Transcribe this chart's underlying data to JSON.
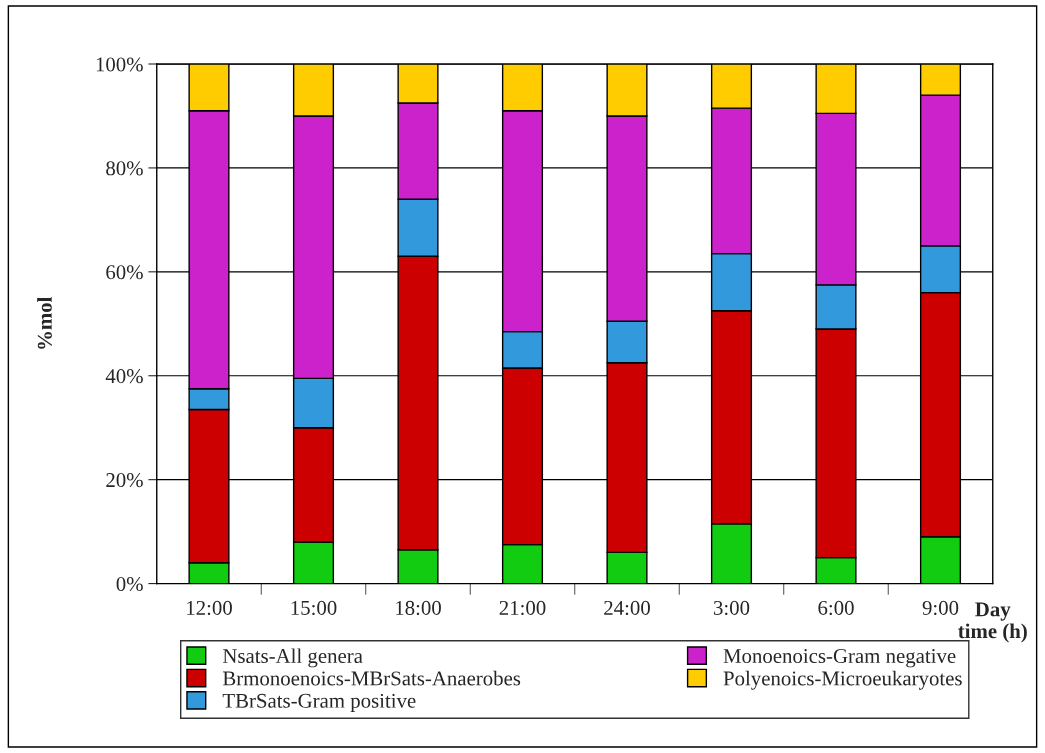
{
  "chart_data": {
    "type": "bar",
    "stacked": true,
    "categories": [
      "12:00",
      "15:00",
      "18:00",
      "21:00",
      "24:00",
      "3:00",
      "6:00",
      "9:00"
    ],
    "series": [
      {
        "name": "Nsats-All genera",
        "color": "#11cc11",
        "values": [
          4,
          8,
          6.5,
          7.5,
          6,
          11.5,
          5,
          9
        ]
      },
      {
        "name": "Brmonoenoics-MBrSats-Anaerobes",
        "color": "#cc0000",
        "values": [
          29.5,
          22,
          56.5,
          34,
          36.5,
          41,
          44,
          47
        ]
      },
      {
        "name": "TBrSats-Gram positive",
        "color": "#3399dd",
        "values": [
          4,
          9.5,
          11,
          7,
          8,
          11,
          8.5,
          9
        ]
      },
      {
        "name": "Monoenoics-Gram negative",
        "color": "#cc22cc",
        "values": [
          53.5,
          50.5,
          18.5,
          42.5,
          39.5,
          28,
          33,
          29
        ]
      },
      {
        "name": "Polyenoics-Microeukaryotes",
        "color": "#ffcc00",
        "values": [
          9,
          10,
          7.5,
          9,
          10,
          8.5,
          9.5,
          6
        ]
      }
    ],
    "ylabel": "%mol",
    "xlabel": "Day\ntime (h)",
    "ylim": [
      0,
      100
    ],
    "yticks": [
      {
        "value": 0,
        "label": "0%"
      },
      {
        "value": 20,
        "label": "20%"
      },
      {
        "value": 40,
        "label": "40%"
      },
      {
        "value": 60,
        "label": "60%"
      },
      {
        "value": 80,
        "label": "80%"
      },
      {
        "value": 100,
        "label": "100%"
      }
    ],
    "grid": "y",
    "legend": "bottom"
  }
}
